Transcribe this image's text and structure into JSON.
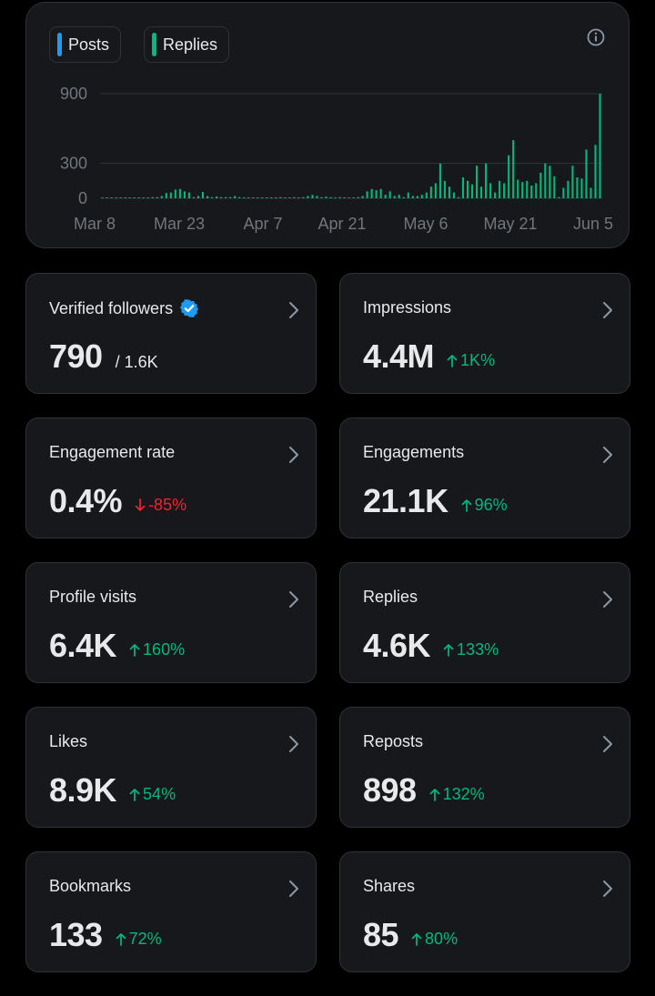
{
  "legend": {
    "posts": {
      "label": "Posts",
      "color": "#1d9bf0"
    },
    "replies": {
      "label": "Replies",
      "color": "#00ba7c"
    }
  },
  "info_icon": "info-circle-icon",
  "chart_data": {
    "type": "bar",
    "x_tick_labels": [
      "Mar 8",
      "Mar 23",
      "Apr 7",
      "Apr 21",
      "May 6",
      "May 21",
      "Jun 5"
    ],
    "y_tick_labels": [
      "900",
      "300",
      "0"
    ],
    "ylim": [
      0,
      900
    ],
    "grid": true,
    "legend_position": "top-left",
    "series": [
      {
        "name": "Replies",
        "color": "#00ba7c",
        "values": [
          5,
          5,
          5,
          5,
          5,
          5,
          5,
          5,
          5,
          5,
          5,
          10,
          10,
          20,
          45,
          50,
          75,
          80,
          60,
          50,
          10,
          20,
          55,
          20,
          10,
          15,
          10,
          10,
          10,
          20,
          10,
          5,
          5,
          5,
          5,
          5,
          5,
          5,
          5,
          10,
          5,
          5,
          10,
          5,
          10,
          20,
          30,
          20,
          10,
          15,
          10,
          5,
          10,
          5,
          5,
          5,
          10,
          20,
          60,
          80,
          70,
          80,
          30,
          60,
          20,
          30,
          10,
          50,
          20,
          20,
          30,
          50,
          100,
          130,
          300,
          150,
          100,
          50,
          10,
          180,
          150,
          120,
          280,
          100,
          300,
          130,
          50,
          150,
          130,
          370,
          500,
          160,
          140,
          150,
          110,
          130,
          220,
          300,
          280,
          190,
          10,
          90,
          150,
          280,
          180,
          170,
          420,
          90,
          460,
          900
        ]
      },
      {
        "name": "Posts",
        "color": "#1d9bf0",
        "values": []
      }
    ]
  },
  "cards": [
    {
      "label": "Verified followers",
      "value": "790",
      "sub": "/ 1.6K",
      "verified": true
    },
    {
      "label": "Impressions",
      "value": "4.4M",
      "delta": "1K%",
      "direction": "up"
    },
    {
      "label": "Engagement rate",
      "value": "0.4%",
      "delta": "-85%",
      "direction": "down"
    },
    {
      "label": "Engagements",
      "value": "21.1K",
      "delta": "96%",
      "direction": "up"
    },
    {
      "label": "Profile visits",
      "value": "6.4K",
      "delta": "160%",
      "direction": "up"
    },
    {
      "label": "Replies",
      "value": "4.6K",
      "delta": "133%",
      "direction": "up"
    },
    {
      "label": "Likes",
      "value": "8.9K",
      "delta": "54%",
      "direction": "up"
    },
    {
      "label": "Reposts",
      "value": "898",
      "delta": "132%",
      "direction": "up"
    },
    {
      "label": "Bookmarks",
      "value": "133",
      "delta": "72%",
      "direction": "up"
    },
    {
      "label": "Shares",
      "value": "85",
      "delta": "80%",
      "direction": "up"
    }
  ]
}
